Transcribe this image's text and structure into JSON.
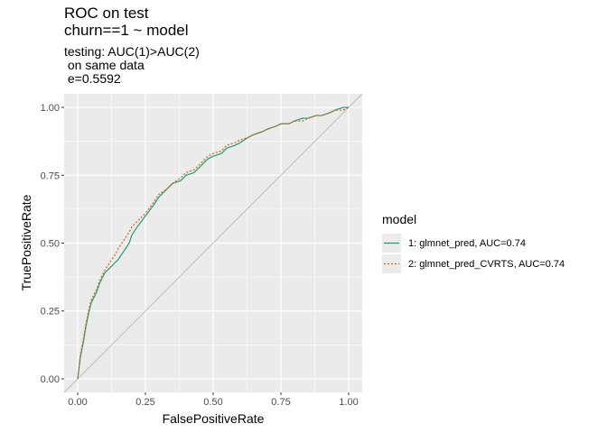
{
  "chart_data": {
    "type": "line",
    "title": "ROC on test",
    "title_line2": "churn==1 ~ model",
    "subtitle_lines": [
      "testing: AUC(1)>AUC(2)",
      " on same data",
      " e=0.5592"
    ],
    "xlabel": "FalsePositiveRate",
    "ylabel": "TruePositiveRate",
    "xlim": [
      -0.05,
      1.05
    ],
    "ylim": [
      -0.05,
      1.05
    ],
    "x_ticks": [
      "0.00",
      "0.25",
      "0.50",
      "0.75",
      "1.00"
    ],
    "y_ticks": [
      "0.00",
      "0.25",
      "0.50",
      "0.75",
      "1.00"
    ],
    "grid": true,
    "background": "#ebebeb",
    "legend": {
      "title": "model",
      "placement": "right",
      "entries": [
        "1: glmnet_pred, AUC=0.74",
        "2: glmnet_pred_CVRTS, AUC=0.74"
      ]
    },
    "diagonal": {
      "color": "#bdbdbd",
      "from": [
        0,
        0
      ],
      "to": [
        1,
        1
      ]
    },
    "series": [
      {
        "name": "1: glmnet_pred, AUC=0.74",
        "color": "#1b9e77",
        "dash": "solid",
        "x": [
          0,
          0.01,
          0.02,
          0.03,
          0.04,
          0.05,
          0.06,
          0.07,
          0.08,
          0.09,
          0.1,
          0.12,
          0.14,
          0.15,
          0.17,
          0.19,
          0.2,
          0.22,
          0.25,
          0.28,
          0.3,
          0.33,
          0.35,
          0.38,
          0.4,
          0.43,
          0.45,
          0.48,
          0.5,
          0.53,
          0.55,
          0.58,
          0.6,
          0.63,
          0.65,
          0.68,
          0.7,
          0.73,
          0.75,
          0.78,
          0.8,
          0.83,
          0.85,
          0.88,
          0.9,
          0.93,
          0.95,
          0.98,
          1.0
        ],
        "y": [
          0,
          0.08,
          0.13,
          0.19,
          0.24,
          0.28,
          0.3,
          0.32,
          0.35,
          0.37,
          0.39,
          0.41,
          0.43,
          0.44,
          0.47,
          0.5,
          0.53,
          0.56,
          0.6,
          0.64,
          0.67,
          0.7,
          0.72,
          0.73,
          0.75,
          0.76,
          0.78,
          0.81,
          0.82,
          0.83,
          0.85,
          0.86,
          0.87,
          0.89,
          0.9,
          0.91,
          0.92,
          0.93,
          0.94,
          0.94,
          0.95,
          0.96,
          0.96,
          0.97,
          0.97,
          0.98,
          0.99,
          1.0,
          1.0
        ]
      },
      {
        "name": "2: glmnet_pred_CVRTS, AUC=0.74",
        "color": "#d95f02",
        "dash": "dotted",
        "x": [
          0,
          0.01,
          0.02,
          0.03,
          0.04,
          0.05,
          0.06,
          0.07,
          0.08,
          0.09,
          0.1,
          0.12,
          0.14,
          0.15,
          0.17,
          0.19,
          0.2,
          0.22,
          0.25,
          0.28,
          0.3,
          0.33,
          0.35,
          0.38,
          0.4,
          0.43,
          0.45,
          0.48,
          0.5,
          0.53,
          0.55,
          0.58,
          0.6,
          0.63,
          0.65,
          0.68,
          0.7,
          0.73,
          0.75,
          0.78,
          0.8,
          0.83,
          0.85,
          0.88,
          0.9,
          0.93,
          0.95,
          0.98,
          1.0
        ],
        "y": [
          0,
          0.09,
          0.14,
          0.2,
          0.25,
          0.29,
          0.31,
          0.33,
          0.36,
          0.38,
          0.4,
          0.43,
          0.46,
          0.48,
          0.51,
          0.54,
          0.56,
          0.58,
          0.61,
          0.65,
          0.68,
          0.7,
          0.72,
          0.74,
          0.76,
          0.77,
          0.79,
          0.82,
          0.83,
          0.84,
          0.86,
          0.87,
          0.88,
          0.89,
          0.9,
          0.91,
          0.92,
          0.93,
          0.94,
          0.94,
          0.95,
          0.95,
          0.96,
          0.97,
          0.97,
          0.98,
          0.99,
          0.99,
          1.0
        ]
      }
    ]
  }
}
